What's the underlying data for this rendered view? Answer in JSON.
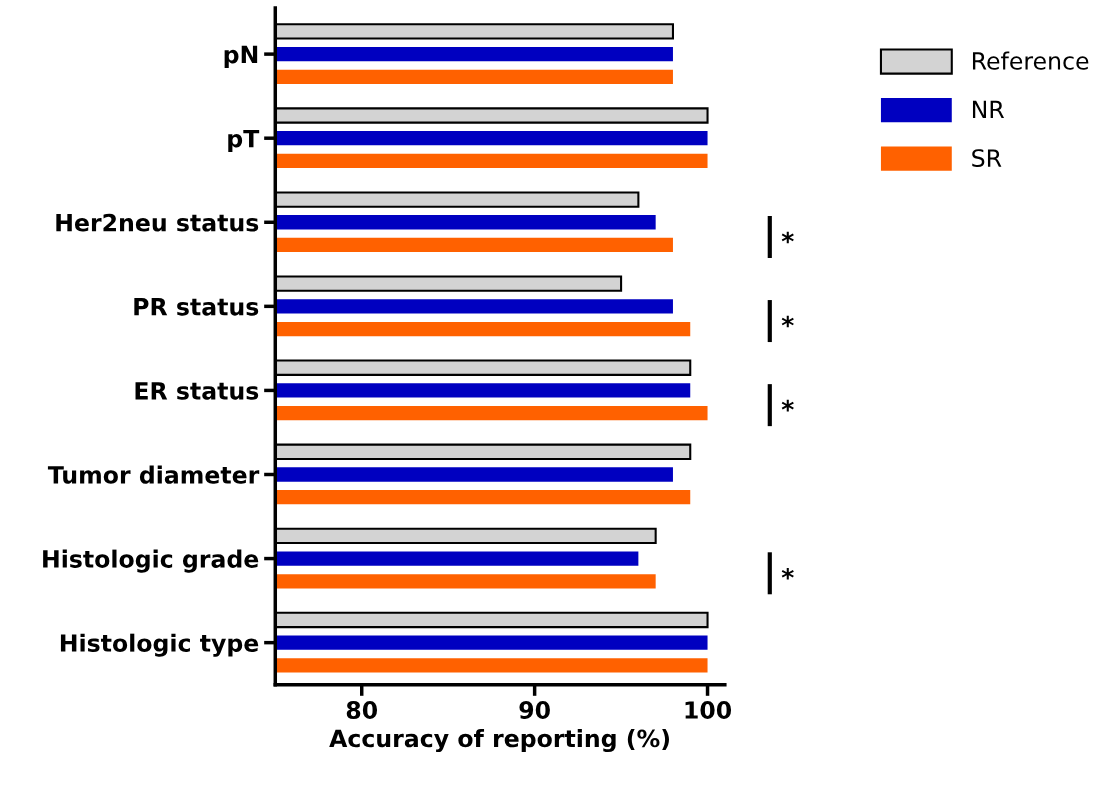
{
  "chart_data": {
    "type": "bar",
    "orientation": "horizontal",
    "xlabel": "Accuracy of reporting (%)",
    "categories": [
      "pN",
      "pT",
      "Her2neu status",
      "PR status",
      "ER status",
      "Tumor diameter",
      "Histologic grade",
      "Histologic type"
    ],
    "series": [
      {
        "name": "Reference",
        "color": "#d3d3d3",
        "values": [
          98,
          100,
          96,
          95,
          99,
          99,
          97,
          100
        ]
      },
      {
        "name": "NR",
        "color": "#0000c0",
        "values": [
          98,
          100,
          97,
          98,
          99,
          98,
          96,
          100
        ]
      },
      {
        "name": "SR",
        "color": "#ff6100",
        "values": [
          98,
          100,
          98,
          99,
          100,
          99,
          97,
          100
        ]
      }
    ],
    "xlim": [
      75,
      101
    ],
    "xticks": [
      80,
      90,
      100
    ],
    "grid": false,
    "legend": "right",
    "annotations": [
      "*",
      "*",
      "*",
      "*"
    ]
  }
}
